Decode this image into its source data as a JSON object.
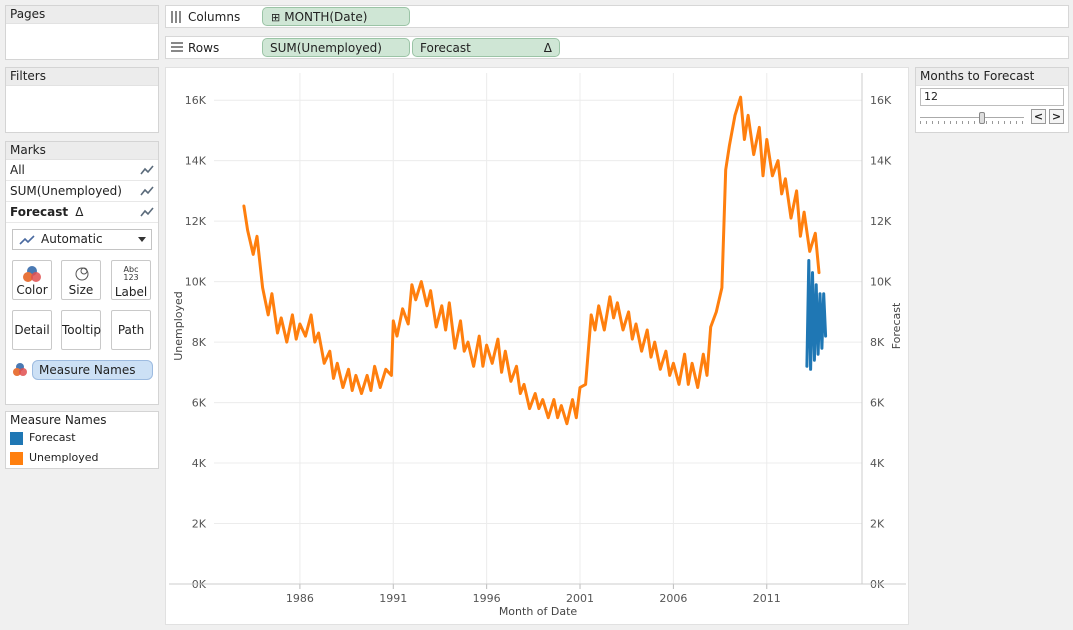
{
  "pages": {
    "title": "Pages"
  },
  "filters": {
    "title": "Filters"
  },
  "marks": {
    "title": "Marks",
    "rows": [
      {
        "label": "All"
      },
      {
        "label": "SUM(Unemployed)"
      },
      {
        "label": "Forecast"
      }
    ],
    "delta_symbol": "Δ",
    "mark_type": "Automatic",
    "buttons": {
      "color": "Color",
      "size": "Size",
      "label": "Label",
      "detail": "Detail",
      "tooltip": "Tooltip",
      "path": "Path"
    },
    "label_icon_text": {
      "top": "Abc",
      "bottom": "123"
    },
    "color_pill": "Measure Names"
  },
  "legend": {
    "title": "Measure Names",
    "items": [
      {
        "label": "Forecast",
        "color": "#1f77b4"
      },
      {
        "label": "Unemployed",
        "color": "#ff7f0e"
      }
    ]
  },
  "shelves": {
    "columns_label": "Columns",
    "columns_pill": "MONTH(Date)",
    "columns_pill_prefix": "⊞",
    "rows_label": "Rows",
    "rows_pills": [
      {
        "label": "SUM(Unemployed)"
      },
      {
        "label": "Forecast",
        "suffix": "Δ"
      }
    ]
  },
  "parameter": {
    "title": "Months to Forecast",
    "value": "12",
    "prev_icon": "chevron-left-icon",
    "next_icon": "chevron-right-icon",
    "prev_glyph": "<",
    "next_glyph": ">",
    "slider_fraction": 0.6
  },
  "chart_data": {
    "type": "line",
    "xlabel": "Month of Date",
    "ylabel_left": "Unemployed",
    "ylabel_right": "Forecast",
    "x_ticks": [
      "1986",
      "1991",
      "1996",
      "2001",
      "2006",
      "2011"
    ],
    "y_ticks": [
      "0K",
      "2K",
      "4K",
      "6K",
      "8K",
      "10K",
      "12K",
      "14K",
      "16K"
    ],
    "xlim": [
      1981.4,
      2016.1
    ],
    "ylim": [
      0,
      16900
    ],
    "grid": true,
    "series": [
      {
        "name": "Unemployed",
        "color": "#ff7f0e",
        "x": [
          1983.0,
          1983.2,
          1983.5,
          1983.7,
          1984.0,
          1984.3,
          1984.5,
          1984.8,
          1985.0,
          1985.3,
          1985.6,
          1985.8,
          1986.0,
          1986.3,
          1986.6,
          1986.8,
          1987.0,
          1987.3,
          1987.6,
          1987.8,
          1988.0,
          1988.3,
          1988.6,
          1988.8,
          1989.0,
          1989.3,
          1989.6,
          1989.8,
          1990.0,
          1990.3,
          1990.6,
          1990.9,
          1991.0,
          1991.2,
          1991.5,
          1991.8,
          1992.0,
          1992.2,
          1992.5,
          1992.8,
          1993.0,
          1993.3,
          1993.6,
          1993.8,
          1994.0,
          1994.3,
          1994.6,
          1994.8,
          1995.0,
          1995.3,
          1995.6,
          1995.8,
          1996.0,
          1996.3,
          1996.6,
          1996.8,
          1997.0,
          1997.3,
          1997.6,
          1997.8,
          1998.0,
          1998.3,
          1998.6,
          1998.8,
          1999.0,
          1999.3,
          1999.6,
          1999.8,
          2000.0,
          2000.3,
          2000.6,
          2000.8,
          2001.0,
          2001.3,
          2001.6,
          2001.8,
          2002.0,
          2002.3,
          2002.6,
          2002.8,
          2003.0,
          2003.3,
          2003.6,
          2003.8,
          2004.0,
          2004.3,
          2004.6,
          2004.8,
          2005.0,
          2005.3,
          2005.6,
          2005.8,
          2006.0,
          2006.3,
          2006.6,
          2006.8,
          2007.0,
          2007.3,
          2007.6,
          2007.8,
          2008.0,
          2008.3,
          2008.6,
          2008.8,
          2009.0,
          2009.3,
          2009.6,
          2009.8,
          2010.0,
          2010.3,
          2010.6,
          2010.8,
          2011.0,
          2011.3,
          2011.6,
          2011.8,
          2012.0,
          2012.3,
          2012.6,
          2012.8,
          2013.0,
          2013.3,
          2013.6,
          2013.8
        ],
        "values": [
          12500,
          11700,
          10900,
          11500,
          9800,
          8900,
          9600,
          8300,
          8800,
          8000,
          8900,
          8100,
          8600,
          8200,
          8900,
          8000,
          8300,
          7300,
          7700,
          6800,
          7300,
          6500,
          7100,
          6400,
          6900,
          6300,
          6900,
          6400,
          7200,
          6500,
          7100,
          6900,
          8700,
          8200,
          9100,
          8600,
          9900,
          9400,
          10000,
          9200,
          9700,
          8500,
          9200,
          8400,
          9300,
          7800,
          8700,
          7700,
          8000,
          7200,
          8200,
          7200,
          7900,
          7300,
          8100,
          7000,
          7700,
          6700,
          7200,
          6300,
          6600,
          5800,
          6300,
          5800,
          6100,
          5500,
          6100,
          5500,
          5900,
          5300,
          6100,
          5500,
          6500,
          6600,
          8900,
          8400,
          9200,
          8400,
          9500,
          8800,
          9300,
          8400,
          9000,
          8100,
          8600,
          7700,
          8400,
          7500,
          8000,
          7100,
          7700,
          6900,
          7300,
          6600,
          7600,
          6600,
          7300,
          6500,
          7600,
          6900,
          8500,
          9000,
          9800,
          13700,
          14500,
          15500,
          16100,
          14700,
          15500,
          14200,
          15100,
          13500,
          14700,
          13500,
          14000,
          12900,
          13400,
          12100,
          13000,
          11500,
          12300,
          11000,
          11600,
          10300
        ],
        "line_width": 3
      },
      {
        "name": "Forecast",
        "color": "#1f77b4",
        "x": [
          2013.15,
          2013.25,
          2013.35,
          2013.45,
          2013.55,
          2013.65,
          2013.75,
          2013.85,
          2013.95,
          2014.05,
          2014.15
        ],
        "values": [
          7200,
          10700,
          7100,
          10300,
          7400,
          9900,
          7600,
          9600,
          7800,
          9600,
          8200
        ],
        "line_width": 3
      }
    ]
  }
}
